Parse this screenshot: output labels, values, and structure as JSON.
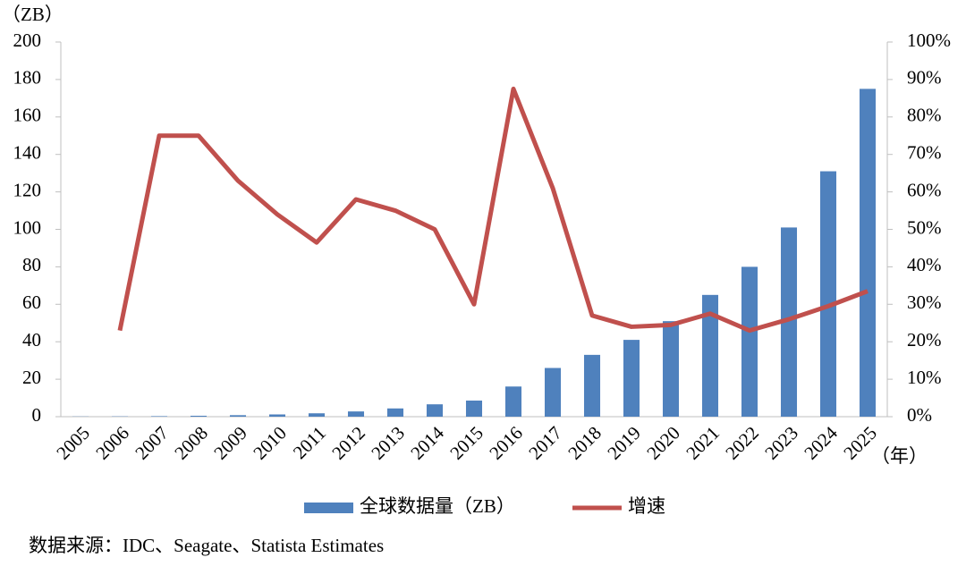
{
  "chart_data": {
    "type": "bar_line",
    "y_label": "（ZB）",
    "x_unit": "（年）",
    "source": "数据来源：IDC、Seagate、Statista Estimates",
    "categories": [
      "2005",
      "2006",
      "2007",
      "2008",
      "2009",
      "2010",
      "2011",
      "2012",
      "2013",
      "2014",
      "2015",
      "2016",
      "2017",
      "2018",
      "2019",
      "2020",
      "2021",
      "2022",
      "2023",
      "2024",
      "2025"
    ],
    "series": [
      {
        "name": "全球数据量（ZB）",
        "type": "bar",
        "color": "#4f81bd",
        "values": [
          0.1,
          0.16,
          0.28,
          0.49,
          0.8,
          1.2,
          1.8,
          2.8,
          4.4,
          6.6,
          8.6,
          16.1,
          26,
          33,
          41,
          51,
          65,
          80,
          101,
          131,
          175
        ]
      },
      {
        "name": "增速",
        "type": "line",
        "axis": "y2",
        "color": "#c0504d",
        "values": [
          null,
          23,
          75,
          75,
          63,
          54,
          46.5,
          58,
          55,
          50,
          30,
          87.5,
          61,
          27,
          24,
          24.5,
          27.5,
          23,
          26,
          29.5,
          33.5
        ]
      }
    ],
    "ylim": [
      0,
      200
    ],
    "yticks": [
      0,
      20,
      40,
      60,
      80,
      100,
      120,
      140,
      160,
      180,
      200
    ],
    "y2lim": [
      0,
      100
    ],
    "y2ticks": [
      {
        "value": 0,
        "label": "0%"
      },
      {
        "value": 10,
        "label": "10%"
      },
      {
        "value": 20,
        "label": "20%"
      },
      {
        "value": 30,
        "label": "30%"
      },
      {
        "value": 40,
        "label": "40%"
      },
      {
        "value": 50,
        "label": "50%"
      },
      {
        "value": 60,
        "label": "60%"
      },
      {
        "value": 70,
        "label": "70%"
      },
      {
        "value": 80,
        "label": "80%"
      },
      {
        "value": 90,
        "label": "90%"
      },
      {
        "value": 100,
        "label": "100%"
      }
    ],
    "grid": false,
    "legend": "bottom"
  }
}
